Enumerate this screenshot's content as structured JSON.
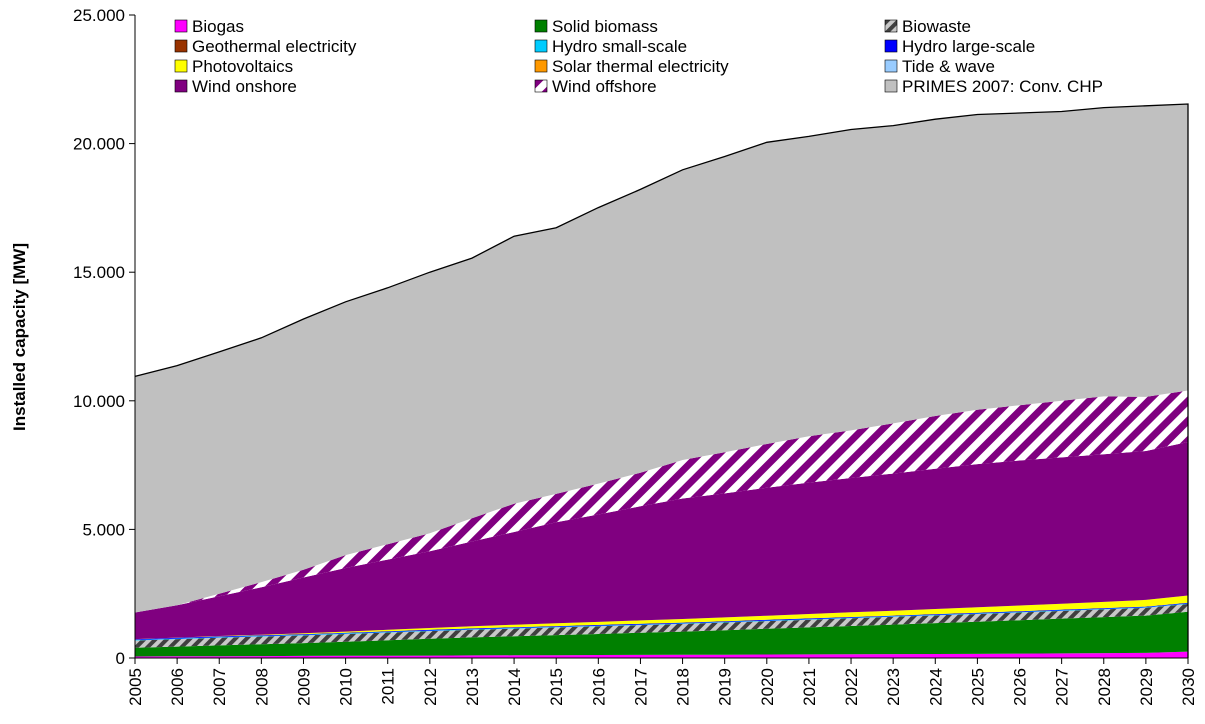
{
  "chart_data": {
    "type": "area",
    "stacked": true,
    "title": "",
    "xlabel": "",
    "ylabel": "Installed capacity [MW]",
    "ylim": [
      0,
      25000
    ],
    "yticks": [
      "0",
      "5.000",
      "10.000",
      "15.000",
      "20.000",
      "25.000"
    ],
    "ytick_values": [
      0,
      5000,
      10000,
      15000,
      20000,
      25000
    ],
    "x": [
      "2005",
      "2006",
      "2007",
      "2008",
      "2009",
      "2010",
      "2011",
      "2012",
      "2013",
      "2014",
      "2015",
      "2016",
      "2017",
      "2018",
      "2019",
      "2020",
      "2021",
      "2022",
      "2023",
      "2024",
      "2025",
      "2026",
      "2027",
      "2028",
      "2029",
      "2030"
    ],
    "grid": false,
    "legend_position": "top",
    "series": [
      {
        "name": "Biogas",
        "color": "#ff00ff",
        "pattern": "solid",
        "values": [
          60,
          65,
          70,
          75,
          80,
          85,
          90,
          95,
          100,
          105,
          110,
          115,
          120,
          125,
          130,
          135,
          140,
          145,
          150,
          155,
          160,
          170,
          180,
          190,
          200,
          250
        ]
      },
      {
        "name": "Solid biomass",
        "color": "#008000",
        "pattern": "solid",
        "values": [
          340,
          380,
          420,
          460,
          500,
          550,
          600,
          650,
          700,
          740,
          780,
          820,
          860,
          900,
          950,
          1000,
          1050,
          1100,
          1150,
          1200,
          1250,
          1300,
          1350,
          1400,
          1450,
          1550
        ]
      },
      {
        "name": "Biowaste",
        "color": "#808080",
        "pattern": "hatch",
        "values": [
          280,
          290,
          300,
          300,
          300,
          300,
          300,
          300,
          300,
          300,
          300,
          300,
          300,
          300,
          300,
          300,
          300,
          300,
          300,
          300,
          300,
          300,
          300,
          300,
          300,
          300
        ]
      },
      {
        "name": "Geothermal electricity",
        "color": "#993300",
        "pattern": "solid",
        "values": [
          0,
          0,
          0,
          0,
          0,
          0,
          0,
          0,
          0,
          0,
          0,
          0,
          0,
          0,
          0,
          0,
          0,
          0,
          0,
          0,
          0,
          0,
          0,
          0,
          0,
          0
        ]
      },
      {
        "name": "Hydro small-scale",
        "color": "#00ccff",
        "pattern": "solid",
        "values": [
          20,
          20,
          20,
          20,
          20,
          20,
          20,
          20,
          20,
          20,
          20,
          20,
          20,
          20,
          20,
          20,
          20,
          20,
          20,
          20,
          20,
          20,
          20,
          20,
          20,
          20
        ]
      },
      {
        "name": "Hydro large-scale",
        "color": "#0000ff",
        "pattern": "solid",
        "values": [
          30,
          30,
          30,
          30,
          30,
          30,
          30,
          30,
          30,
          30,
          30,
          30,
          30,
          30,
          30,
          30,
          30,
          30,
          30,
          30,
          30,
          30,
          30,
          30,
          30,
          30
        ]
      },
      {
        "name": "Photovoltaics",
        "color": "#ffff00",
        "pattern": "solid",
        "values": [
          5,
          10,
          15,
          20,
          30,
          40,
          55,
          70,
          85,
          100,
          110,
          120,
          130,
          140,
          150,
          160,
          170,
          180,
          190,
          200,
          210,
          220,
          230,
          240,
          260,
          280
        ]
      },
      {
        "name": "Solar thermal electricity",
        "color": "#ff9900",
        "pattern": "solid",
        "values": [
          0,
          0,
          0,
          0,
          0,
          0,
          0,
          0,
          0,
          0,
          0,
          0,
          0,
          0,
          0,
          0,
          0,
          0,
          0,
          0,
          0,
          0,
          0,
          0,
          0,
          0
        ]
      },
      {
        "name": "Tide & wave",
        "color": "#99ccff",
        "pattern": "solid",
        "values": [
          0,
          0,
          0,
          0,
          0,
          0,
          0,
          0,
          0,
          0,
          0,
          0,
          0,
          0,
          0,
          0,
          0,
          0,
          0,
          0,
          0,
          0,
          0,
          0,
          0,
          0
        ]
      },
      {
        "name": "Wind onshore",
        "color": "#800080",
        "pattern": "solid",
        "values": [
          1035,
          1255,
          1545,
          1845,
          2170,
          2475,
          2730,
          2985,
          3295,
          3605,
          3930,
          4175,
          4440,
          4685,
          4820,
          4975,
          5110,
          5225,
          5330,
          5455,
          5570,
          5640,
          5690,
          5740,
          5790,
          5970
        ]
      },
      {
        "name": "Wind offshore",
        "color": "#800080",
        "pattern": "stripe",
        "values": [
          0,
          0,
          100,
          200,
          300,
          500,
          600,
          700,
          900,
          1100,
          1100,
          1200,
          1300,
          1500,
          1600,
          1700,
          1800,
          1850,
          1950,
          2050,
          2110,
          2150,
          2200,
          2250,
          2100,
          2000
        ]
      },
      {
        "name": "PRIMES 2007: Conv. CHP",
        "color": "#c0c0c0",
        "pattern": "solid",
        "values": [
          9180,
          9320,
          9400,
          9500,
          9750,
          9850,
          9970,
          10150,
          10120,
          10400,
          10350,
          10730,
          11020,
          11280,
          11500,
          11730,
          11660,
          11700,
          11580,
          11540,
          11480,
          11360,
          11250,
          11230,
          11320,
          11140
        ]
      }
    ]
  }
}
